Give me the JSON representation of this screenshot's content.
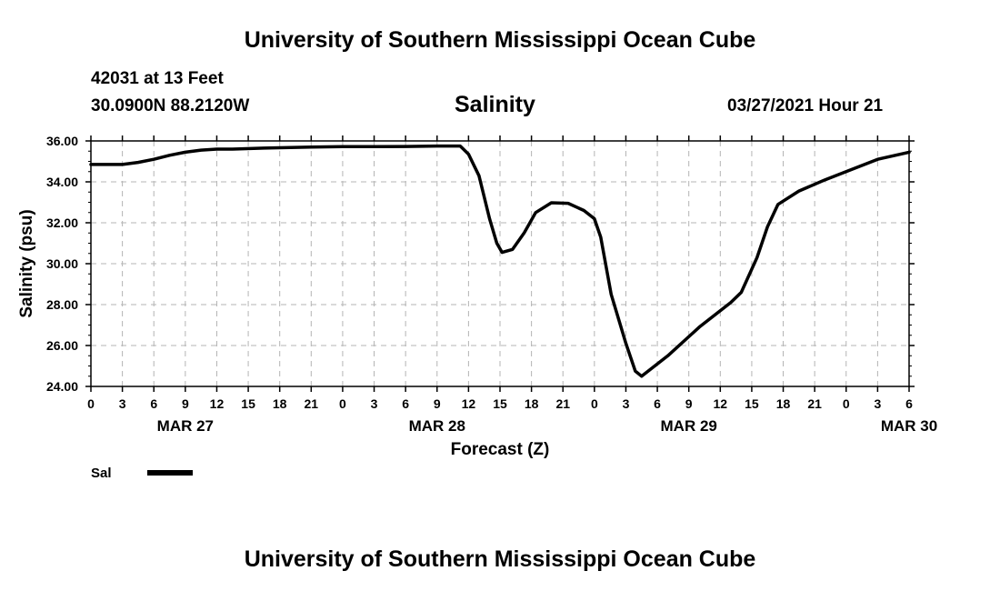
{
  "header": {
    "title_top": "University of Southern Mississippi Ocean Cube",
    "title_bottom": "University of Southern Mississippi Ocean Cube",
    "station": "42031 at 13 Feet",
    "coords": "30.0900N  88.2120W",
    "datetime": "03/27/2021 Hour 21"
  },
  "chart_data": {
    "type": "line",
    "title": "Salinity",
    "xlabel": "Forecast (Z)",
    "ylabel": "Salinity (psu)",
    "x_unit": "hours since MAR 27 00Z",
    "xlim": [
      0,
      78
    ],
    "ylim": [
      24,
      36
    ],
    "y_ticks": [
      "24.00",
      "26.00",
      "28.00",
      "30.00",
      "32.00",
      "34.00",
      "36.00"
    ],
    "x_tick_labels": [
      "0",
      "3",
      "6",
      "9",
      "12",
      "15",
      "18",
      "21",
      "0",
      "3",
      "6",
      "9",
      "12",
      "15",
      "18",
      "21",
      "0",
      "3",
      "6",
      "9",
      "12",
      "15",
      "18",
      "21",
      "0",
      "3",
      "6"
    ],
    "date_labels": [
      {
        "label": "MAR 27",
        "hour": 9
      },
      {
        "label": "MAR 28",
        "hour": 33
      },
      {
        "label": "MAR 29",
        "hour": 57
      },
      {
        "label": "MAR 30",
        "hour": 78
      }
    ],
    "grid": true,
    "legend": [
      {
        "name": "Sal"
      }
    ],
    "series": [
      {
        "name": "Sal",
        "x": [
          0,
          1.5,
          3,
          4.5,
          6,
          7.5,
          9,
          10.5,
          12,
          13.5,
          16.5,
          21,
          24,
          27,
          30,
          33,
          34.5,
          35.2,
          36,
          37,
          38,
          38.7,
          39.2,
          40.2,
          41.3,
          42.4,
          43.9,
          45.5,
          47,
          48,
          48.6,
          49.6,
          51,
          51.9,
          52.5,
          55,
          58,
          61,
          62,
          63.5,
          64.5,
          65.5,
          67.5,
          70,
          72.5,
          75,
          78
        ],
        "values": [
          34.85,
          34.85,
          34.85,
          34.95,
          35.1,
          35.3,
          35.45,
          35.55,
          35.6,
          35.6,
          35.65,
          35.7,
          35.72,
          35.72,
          35.73,
          35.75,
          35.75,
          35.75,
          35.35,
          34.3,
          32.2,
          31.0,
          30.55,
          30.7,
          31.5,
          32.5,
          32.98,
          32.95,
          32.6,
          32.2,
          31.3,
          28.5,
          26.1,
          24.75,
          24.5,
          25.5,
          26.9,
          28.1,
          28.6,
          30.3,
          31.8,
          32.9,
          33.55,
          34.1,
          34.6,
          35.1,
          35.45
        ]
      }
    ]
  }
}
